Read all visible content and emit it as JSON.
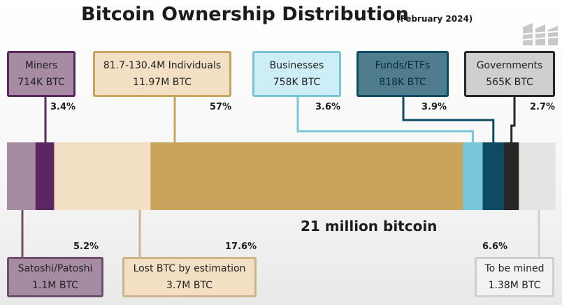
{
  "header": {
    "title": "Bitcoin Ownership Distribution",
    "subtitle": "(February 2024)"
  },
  "logo": {
    "name": "logo-icon"
  },
  "chart_data": {
    "type": "bar",
    "orientation": "horizontal-stacked",
    "total_label": "21 million bitcoin",
    "segments": [
      {
        "name": "Satoshi/Patoshi",
        "amount": "1.1M BTC",
        "percent": "5.2%",
        "value": 5.2,
        "color": "#a68ba3",
        "label_position": "bottom"
      },
      {
        "name": "Miners",
        "amount": "714K BTC",
        "percent": "3.4%",
        "value": 3.4,
        "color": "#5c2660",
        "label_position": "top"
      },
      {
        "name": "Lost BTC by estimation",
        "amount": "3.7M BTC",
        "percent": "17.6%",
        "value": 17.6,
        "color": "#f2dfc4",
        "label_position": "bottom"
      },
      {
        "name": "81.7-130.4M Individuals",
        "amount": "11.97M BTC",
        "percent": "57%",
        "value": 57,
        "color": "#c9a45c",
        "label_position": "top"
      },
      {
        "name": "Businesses",
        "amount": "758K BTC",
        "percent": "3.6%",
        "value": 3.6,
        "color": "#7ac6d9",
        "label_position": "top"
      },
      {
        "name": "Funds/ETFs",
        "amount": "818K BTC",
        "percent": "3.9%",
        "value": 3.9,
        "color": "#0d4a63",
        "label_position": "top"
      },
      {
        "name": "Governments",
        "amount": "565K BTC",
        "percent": "2.7%",
        "value": 2.7,
        "color": "#262626",
        "label_position": "top"
      },
      {
        "name": "To be mined",
        "amount": "1.38M BTC",
        "percent": "6.6%",
        "value": 6.6,
        "color": "#e4e4e2",
        "label_position": "bottom"
      }
    ]
  }
}
